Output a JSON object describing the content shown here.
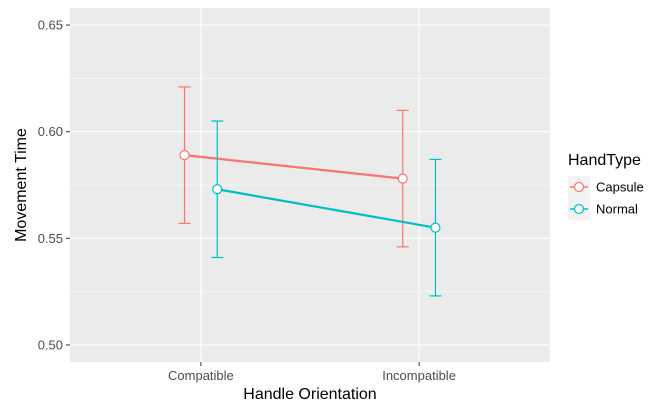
{
  "chart_data": {
    "type": "line",
    "title": "",
    "xlabel": "Handle Orientation",
    "ylabel": "Movement Time",
    "categories": [
      "Compatible",
      "Incompatible"
    ],
    "ylim": [
      0.492,
      0.658
    ],
    "yticks": [
      0.5,
      0.55,
      0.6,
      0.65
    ],
    "yticklabels": [
      "0.50",
      "0.55",
      "0.60",
      "0.65"
    ],
    "grid": true,
    "legend": {
      "title": "HandType",
      "position": "right"
    },
    "series": [
      {
        "name": "Capsule",
        "color": "#F8766D",
        "values": [
          0.589,
          0.578
        ],
        "error_low": [
          0.557,
          0.546
        ],
        "error_high": [
          0.621,
          0.61
        ]
      },
      {
        "name": "Normal",
        "color": "#00BFC4",
        "values": [
          0.573,
          0.555
        ],
        "error_low": [
          0.541,
          0.523
        ],
        "error_high": [
          0.605,
          0.587
        ]
      }
    ]
  }
}
